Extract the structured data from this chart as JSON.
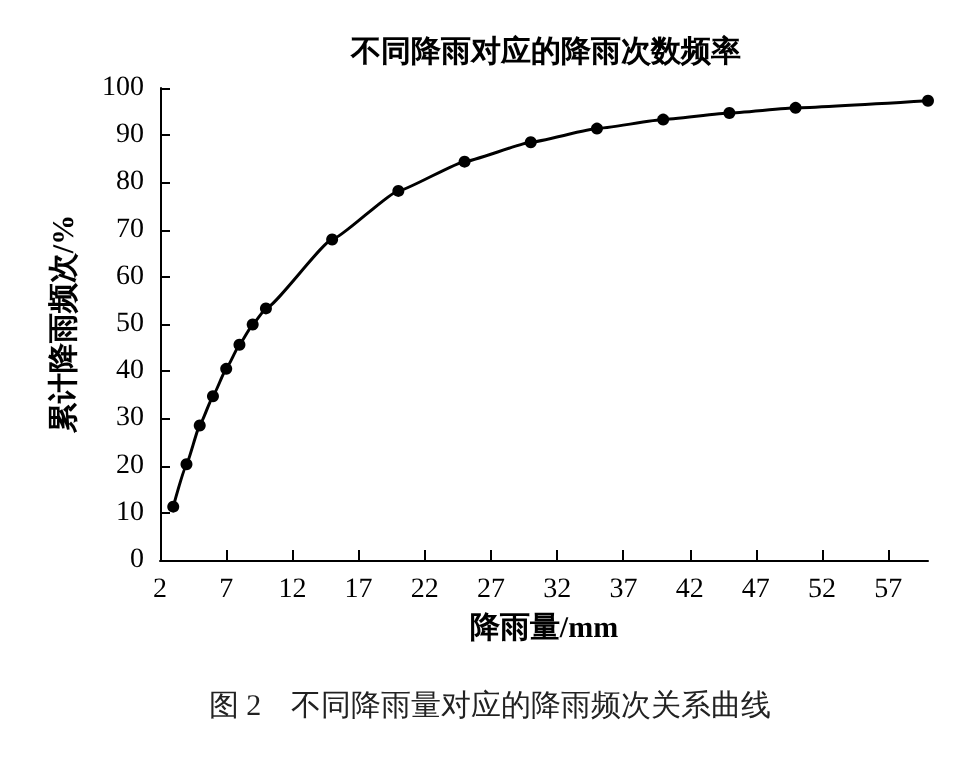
{
  "chart_data": {
    "type": "line",
    "title": "不同降雨对应的降雨次数频率",
    "xlabel": "降雨量/mm",
    "ylabel": "累计降雨频次/%",
    "annotations": [
      "图 2　不同降雨量对应的降雨频次关系曲线"
    ],
    "x": [
      3,
      4,
      5,
      6,
      7,
      8,
      9,
      10,
      15,
      20,
      25,
      30,
      35,
      40,
      45,
      50,
      60
    ],
    "series": [
      {
        "color": "#000000",
        "values": [
          11.3,
          20.3,
          28.5,
          34.7,
          40.5,
          45.6,
          49.9,
          53.3,
          67.9,
          78.2,
          84.4,
          88.5,
          91.4,
          93.3,
          94.7,
          95.8,
          97.3
        ]
      }
    ],
    "xlim": [
      2,
      60
    ],
    "xticks": [
      2,
      7,
      12,
      17,
      22,
      27,
      32,
      37,
      42,
      47,
      52,
      57
    ],
    "ylim": [
      0,
      100
    ],
    "yticks": [
      0,
      10,
      20,
      30,
      40,
      50,
      60,
      70,
      80,
      90,
      100
    ],
    "grid": false,
    "marker": "circle",
    "line_style": "solid"
  }
}
